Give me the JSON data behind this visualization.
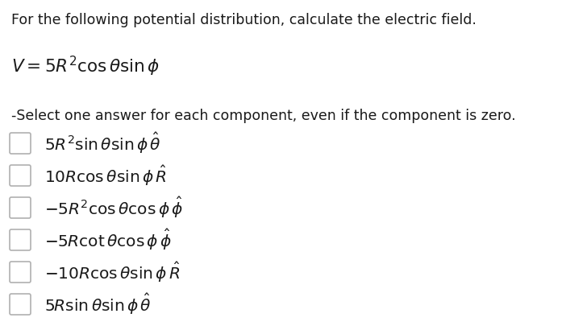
{
  "title_line": "For the following potential distribution, calculate the electric field.",
  "equation": "$V = 5R^2 \\cos\\theta\\sin\\phi$",
  "instruction": "-Select one answer for each component, even if the component is zero.",
  "options": [
    "$5R^2 \\sin\\theta\\sin\\phi\\,\\hat{\\theta}$",
    "$10R\\cos\\theta\\sin\\phi\\,\\hat{R}$",
    "$-5R^2 \\cos\\theta\\cos\\phi\\,\\hat{\\phi}$",
    "$-5R\\cot\\theta\\cos\\phi\\,\\hat{\\phi}$",
    "$-10R\\cos\\theta\\sin\\phi\\,\\hat{R}$",
    "$5R\\sin\\theta\\sin\\phi\\,\\hat{\\theta}$"
  ],
  "bg_color": "#ffffff",
  "text_color": "#1a1a1a",
  "checkbox_color": "#b0b0b0",
  "title_fontsize": 12.5,
  "eq_fontsize": 15.5,
  "instr_fontsize": 12.5,
  "option_fontsize": 14.5,
  "fig_width": 6.97,
  "fig_height": 4.05,
  "dpi": 100
}
